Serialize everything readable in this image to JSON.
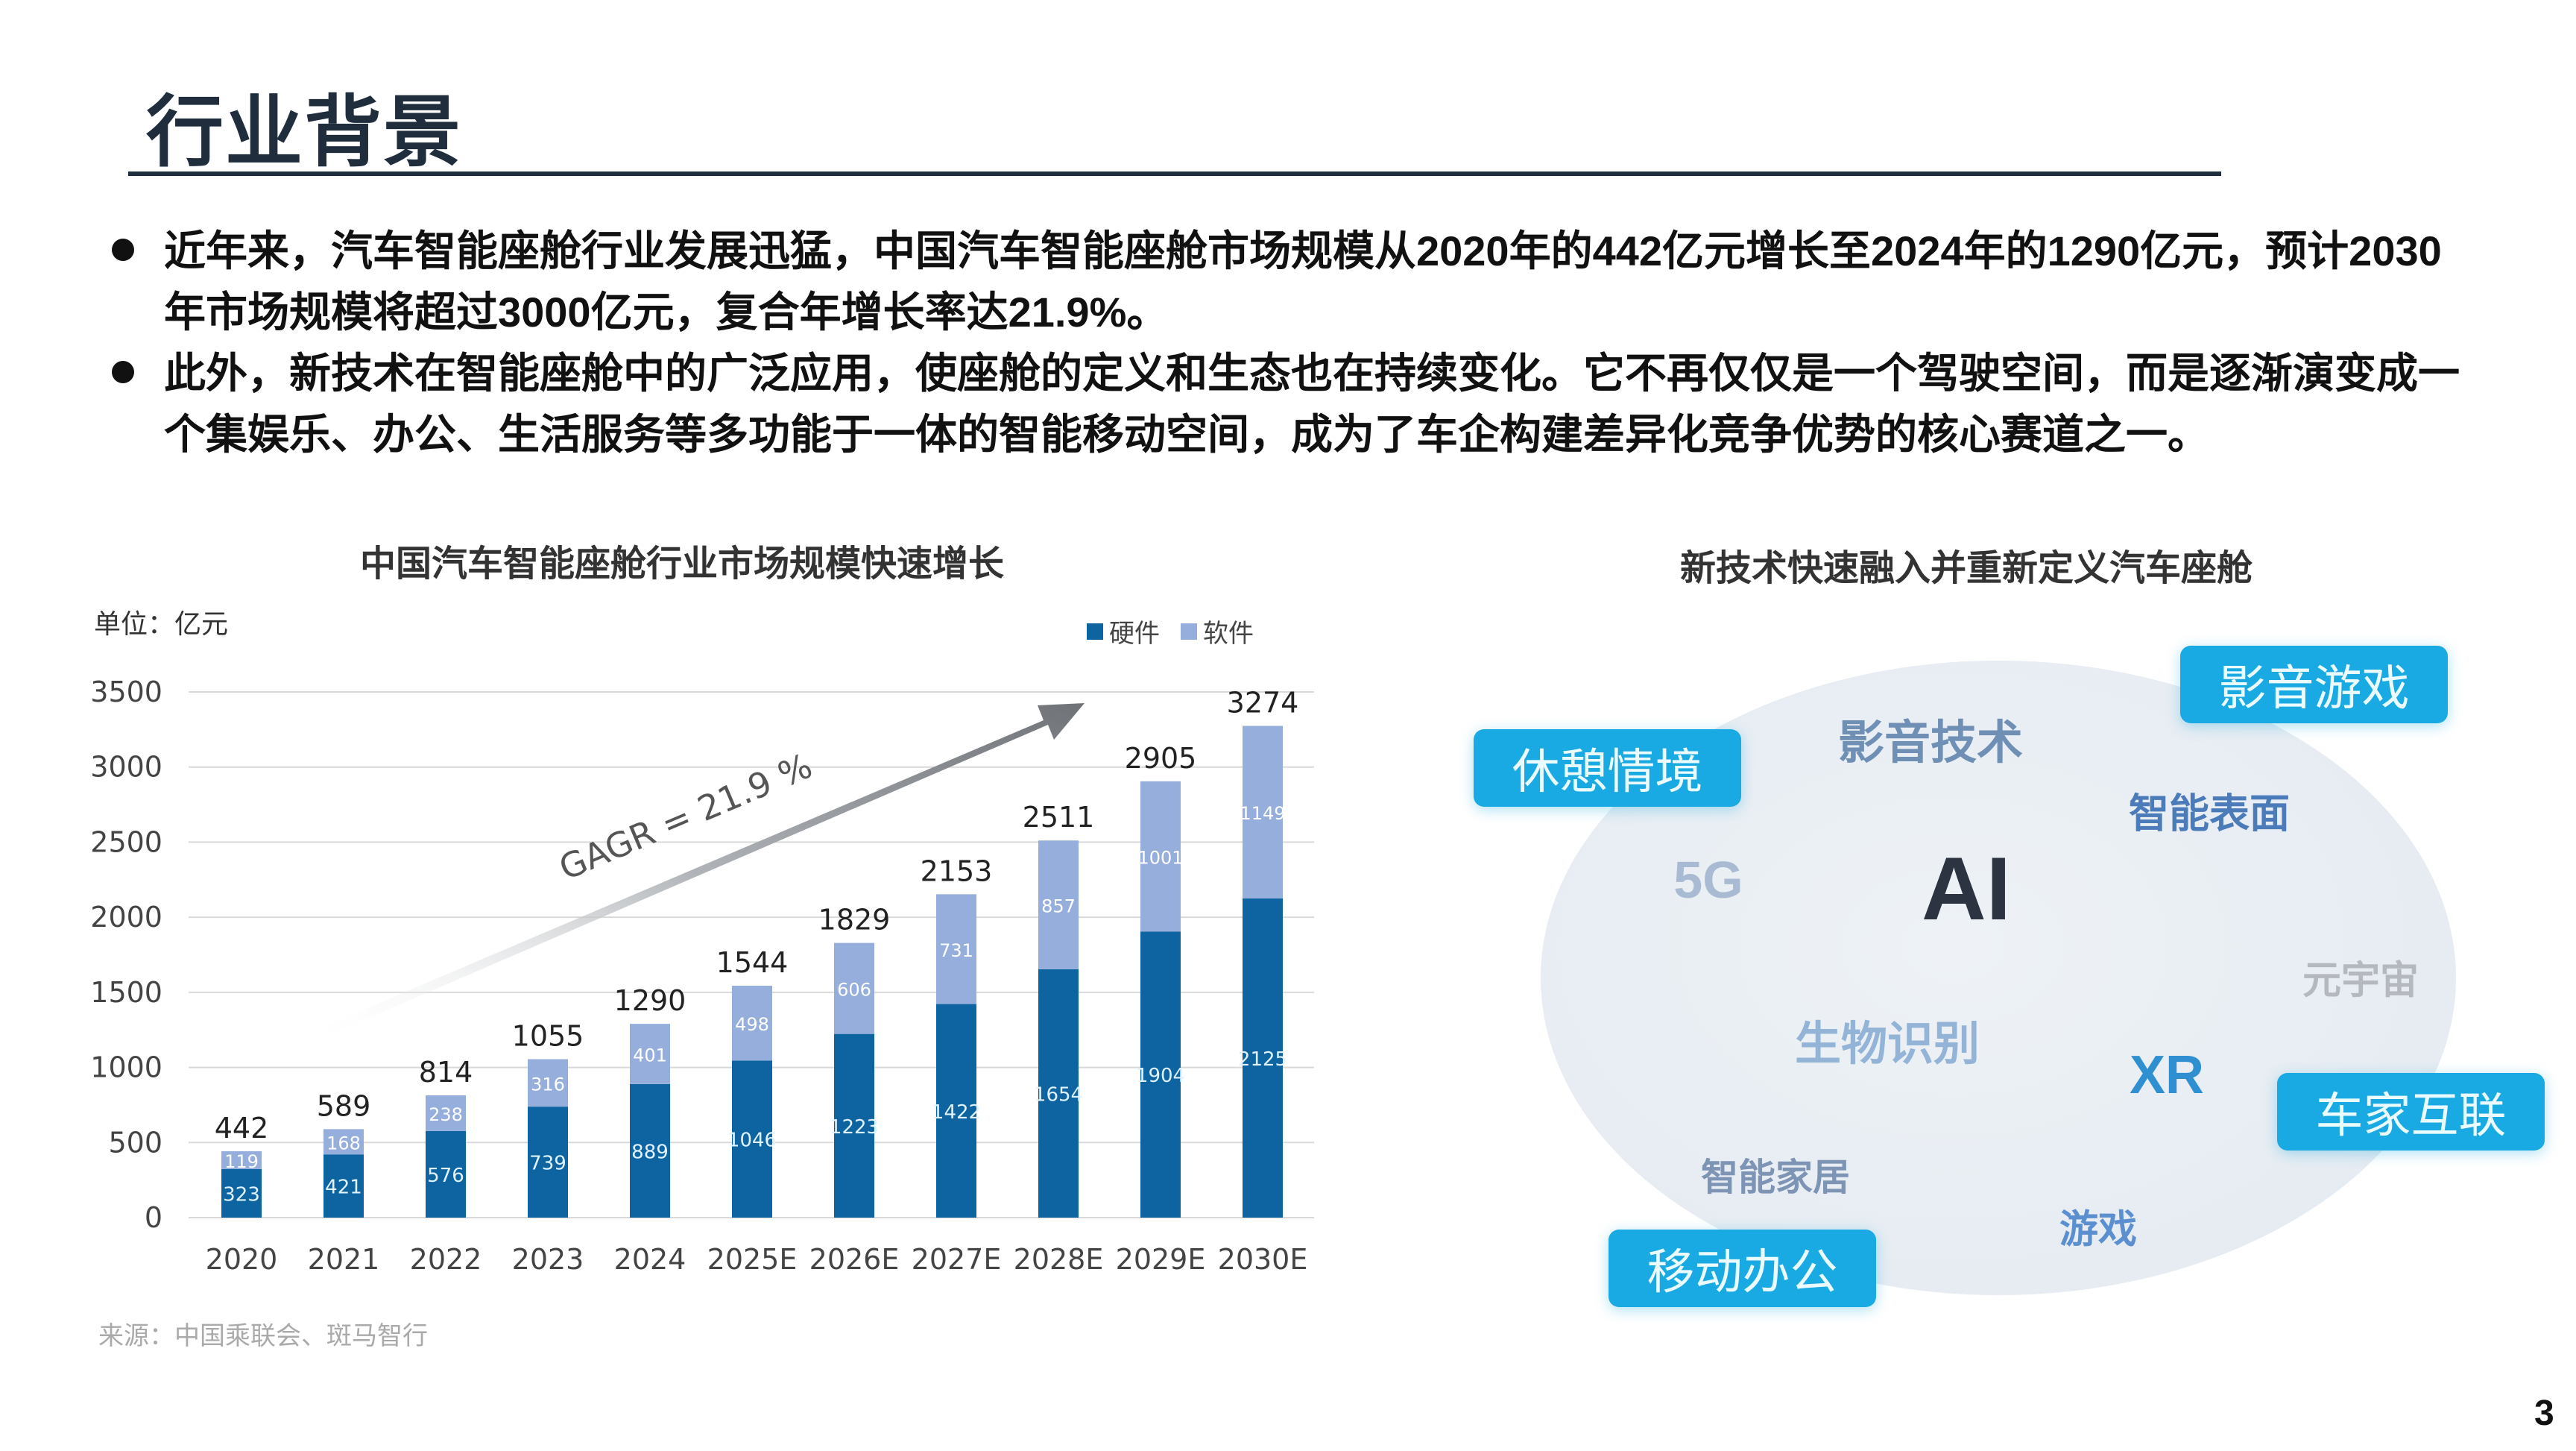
{
  "header": {
    "title": "行业背景"
  },
  "bullets": [
    "近年来，汽车智能座舱行业发展迅猛，中国汽车智能座舱市场规模从2020年的442亿元增长至2024年的1290亿元，预计2030年市场规模将超过3000亿元，复合年增长率达21.9%。",
    "此外，新技术在智能座舱中的广泛应用，使座舱的定义和生态也在持续变化。它不再仅仅是一个驾驶空间，而是逐渐演变成一个集娱乐、办公、生活服务等多功能于一体的智能移动空间，成为了车企构建差异化竞争优势的核心赛道之一。"
  ],
  "chart_data": {
    "type": "bar",
    "stacked": true,
    "title": "中国汽车智能座舱行业市场规模快速增长",
    "unit_label": "单位：亿元",
    "categories": [
      "2020",
      "2021",
      "2022",
      "2023",
      "2024",
      "2025E",
      "2026E",
      "2027E",
      "2028E",
      "2029E",
      "2030E"
    ],
    "series": [
      {
        "name": "硬件",
        "color": "#0e64a0",
        "values": [
          323,
          421,
          576,
          739,
          889,
          1046,
          1223,
          1422,
          1654,
          1904,
          2125
        ]
      },
      {
        "name": "软件",
        "color": "#95aedc",
        "values": [
          119,
          168,
          238,
          316,
          401,
          498,
          606,
          731,
          857,
          1001,
          1149
        ]
      }
    ],
    "totals": [
      442,
      589,
      814,
      1055,
      1290,
      1544,
      1829,
      2153,
      2511,
      2905,
      3274
    ],
    "yticks": [
      0,
      500,
      1000,
      1500,
      2000,
      2500,
      3000,
      3500
    ],
    "ylim": [
      0,
      3500
    ],
    "grid": true,
    "legend_position": "top-right",
    "annotation": "GAGR = 21.9 %",
    "source": "来源：中国乘联会、斑马智行"
  },
  "diagram": {
    "title": "新技术快速融入并重新定义汽车座舱",
    "tags": [
      "休憩情境",
      "影音游戏",
      "车家互联",
      "移动办公"
    ],
    "keywords": {
      "ai": "AI",
      "media_tech": "影音技术",
      "smart_surface": "智能表面",
      "g5": "5G",
      "metaverse": "元宇宙",
      "biometrics": "生物识别",
      "xr": "XR",
      "smart_home": "智能家居",
      "games": "游戏"
    }
  },
  "page_number": "3"
}
